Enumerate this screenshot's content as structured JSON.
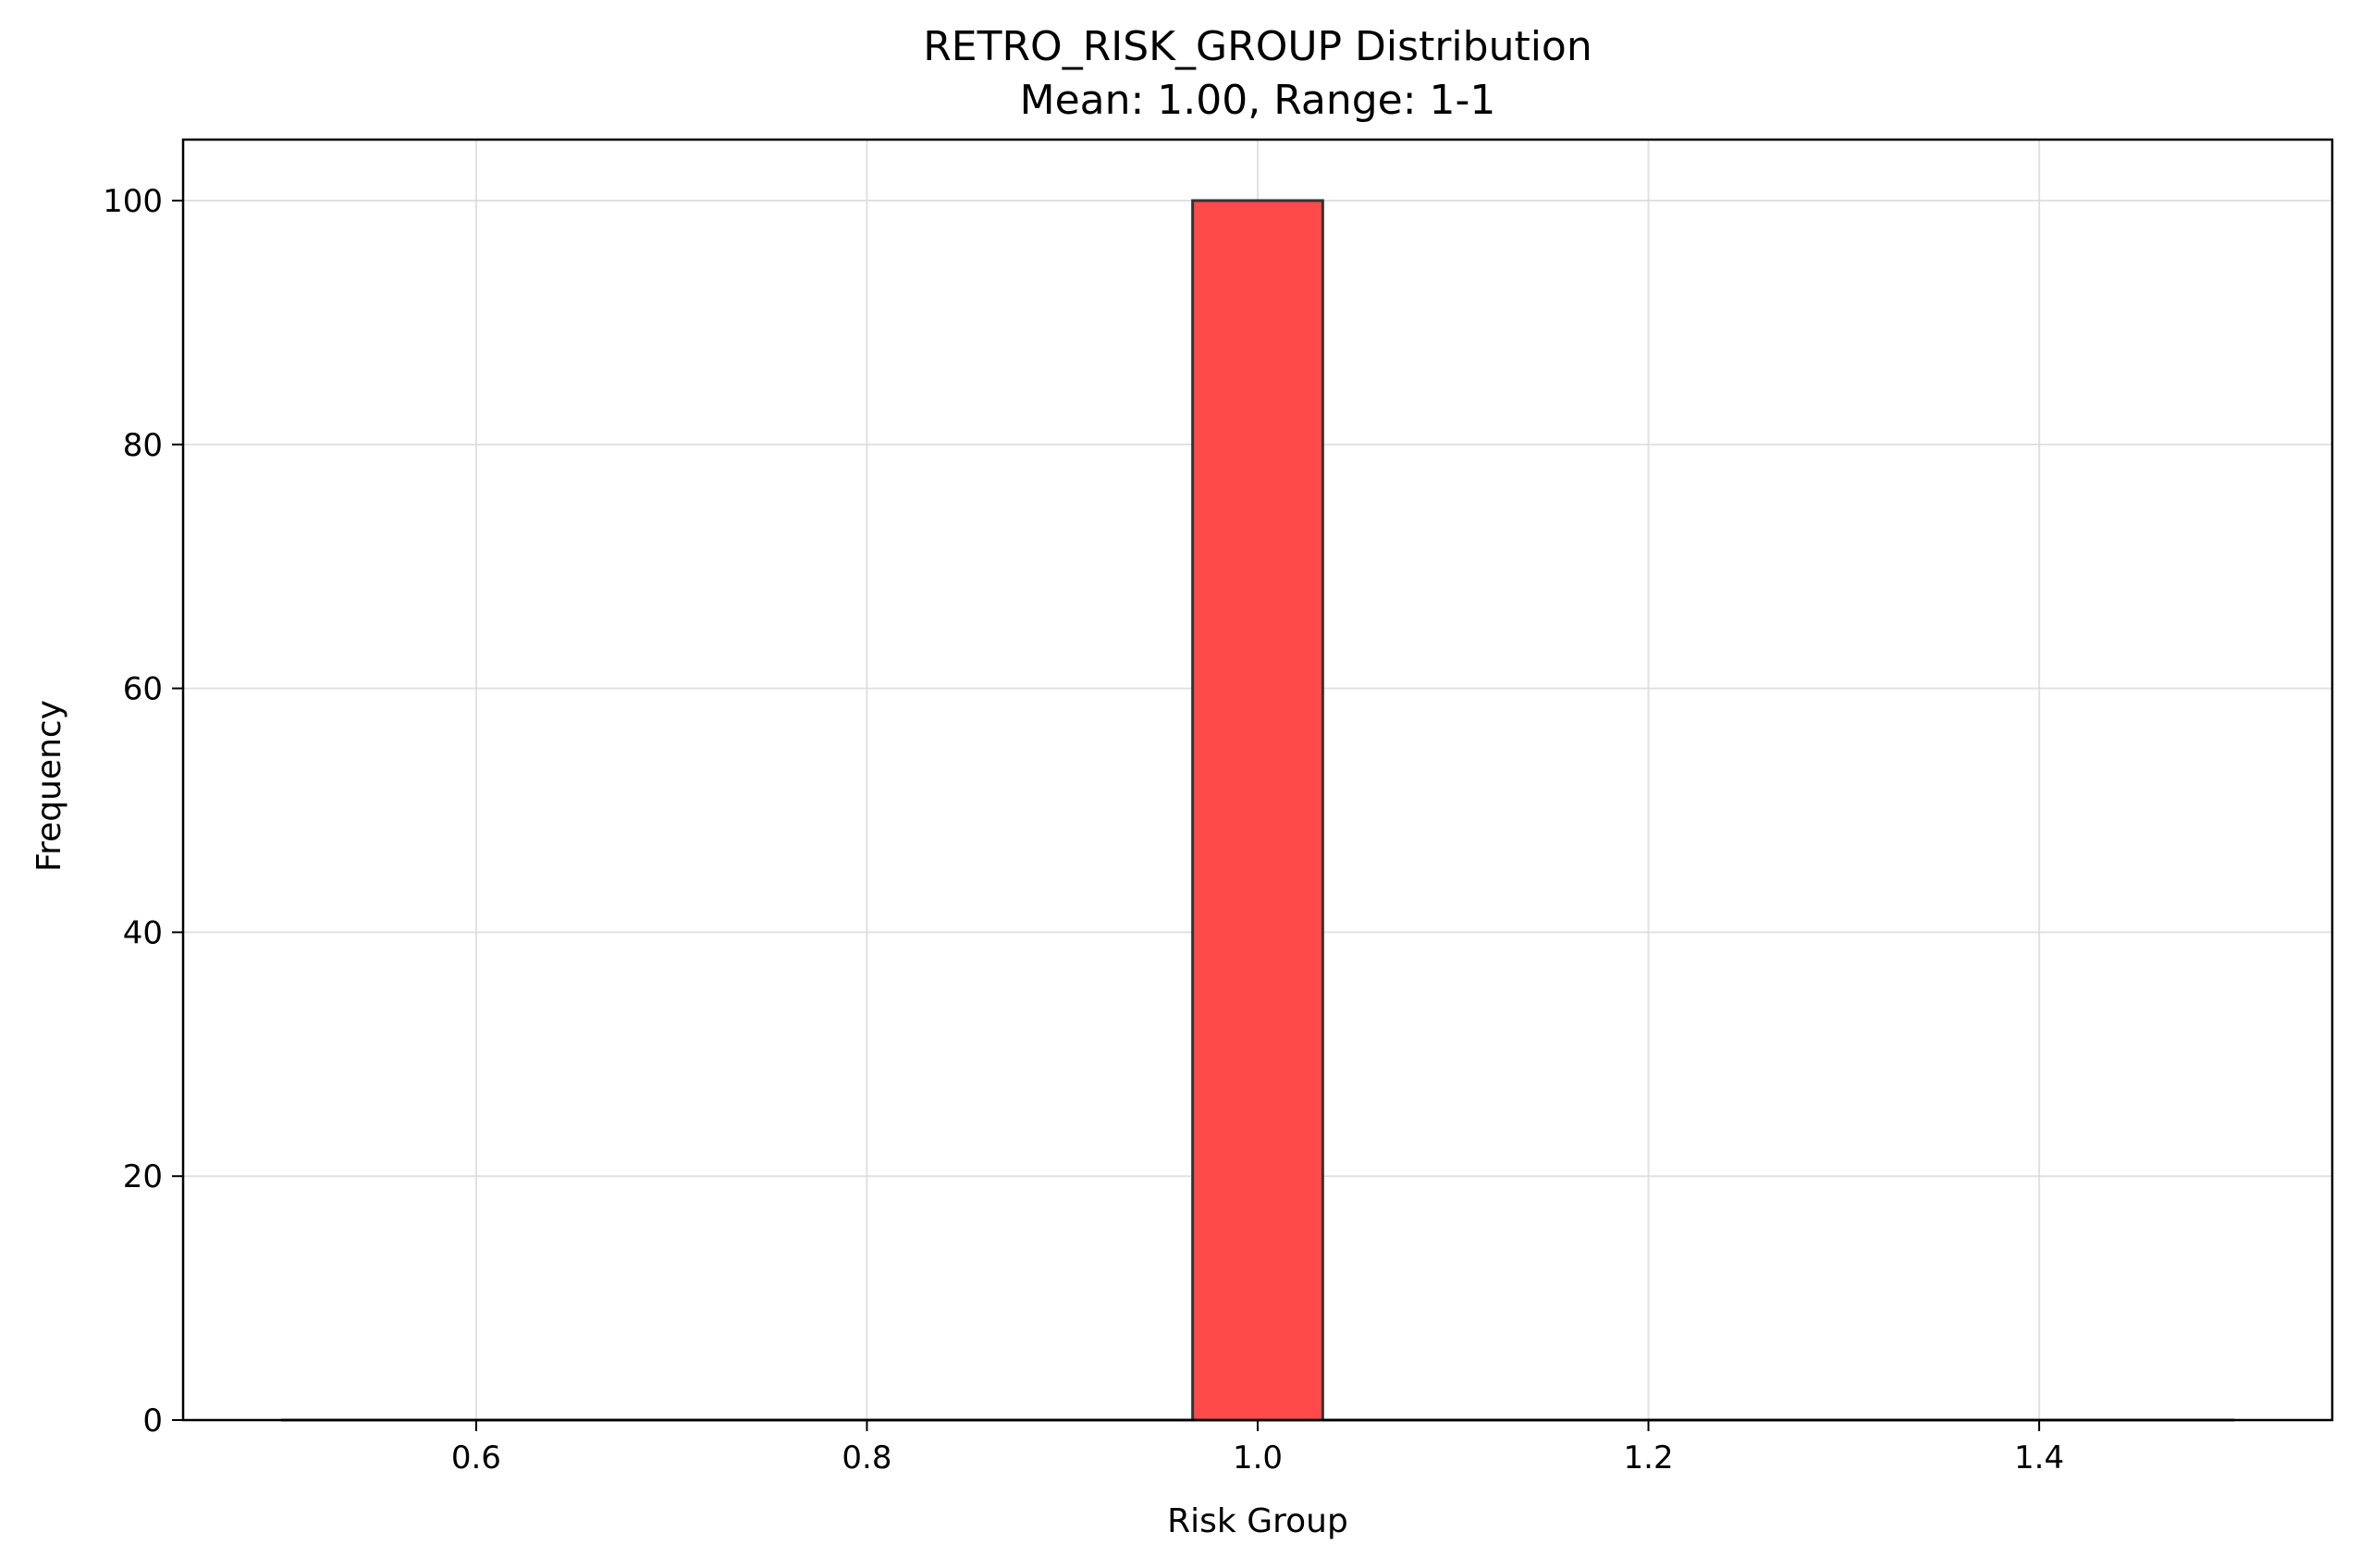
{
  "chart_data": {
    "type": "bar",
    "title": "RETRO_RISK_GROUP Distribution",
    "subtitle": "Mean: 1.00, Range: 1-1",
    "xlabel": "Risk Group",
    "ylabel": "Frequency",
    "xlim": [
      0.45,
      1.55
    ],
    "ylim": [
      0,
      105
    ],
    "xticks": [
      0.6,
      0.8,
      1.0,
      1.2,
      1.4
    ],
    "xtick_labels": [
      "0.6",
      "0.8",
      "1.0",
      "1.2",
      "1.4"
    ],
    "yticks": [
      0,
      20,
      40,
      60,
      80,
      100
    ],
    "ytick_labels": [
      "0",
      "20",
      "40",
      "60",
      "80",
      "100"
    ],
    "grid": true,
    "bar_color": "#ff4a4a",
    "edge_color": "#333333",
    "bins": [
      {
        "x0": 0.5,
        "x1": 0.9667,
        "value": 0
      },
      {
        "x0": 0.9667,
        "x1": 1.0333,
        "value": 100
      },
      {
        "x0": 1.0333,
        "x1": 1.5,
        "value": 0
      }
    ]
  }
}
